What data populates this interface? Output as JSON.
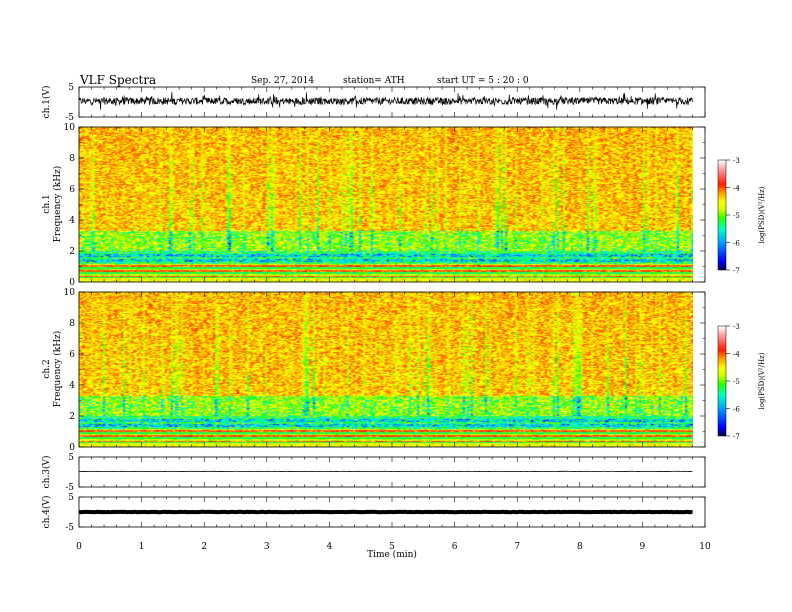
{
  "header": {
    "title": "VLF  Spectra",
    "date": "Sep. 27, 2014",
    "station": "station= ATH",
    "start": "start  UT =   5  : 20 : 0"
  },
  "colors": {
    "spectrum": [
      "#00007a",
      "#0000ff",
      "#0080ff",
      "#00e0ff",
      "#00ff90",
      "#40ff00",
      "#c0ff00",
      "#ffff00",
      "#ffc000",
      "#ff6000",
      "#ff2000",
      "#ff9090",
      "#ffffff"
    ]
  },
  "chart_data": [
    {
      "type": "line",
      "ylabel": "ch.1(V)",
      "xlim": [
        0,
        10
      ],
      "ylim": [
        -5,
        5
      ],
      "yticks": [
        -5,
        5
      ],
      "signal": {
        "baseline": 0.3,
        "amplitude": 1.5,
        "end": 9.8
      }
    },
    {
      "type": "heatmap",
      "ylabel_channel": "ch.1",
      "ylabel": "Frequency  (kHz)",
      "xlim": [
        0,
        10
      ],
      "ylim": [
        0,
        10
      ],
      "yticks": [
        "0",
        "2",
        "4",
        "6",
        "8",
        "10"
      ],
      "colorbar": {
        "label": "log(PSD)(V²/Hz)",
        "ticks": [
          "-3",
          "-4",
          "-5",
          "-6",
          "-7"
        ],
        "range": [
          -7,
          -3
        ]
      }
    },
    {
      "type": "heatmap",
      "ylabel_channel": "ch.2",
      "ylabel": "Frequency  (kHz)",
      "xlim": [
        0,
        10
      ],
      "ylim": [
        0,
        10
      ],
      "yticks": [
        "0",
        "2",
        "4",
        "6",
        "8",
        "10"
      ],
      "colorbar": {
        "label": "log(PSD)(V²/Hz)",
        "ticks": [
          "-3",
          "-4",
          "-5",
          "-6",
          "-7"
        ],
        "range": [
          -7,
          -3
        ]
      }
    },
    {
      "type": "line",
      "ylabel": "ch.3(V)",
      "xlim": [
        0,
        10
      ],
      "ylim": [
        -5,
        5
      ],
      "yticks": [
        -5,
        5
      ],
      "signal": {
        "baseline": 0.2,
        "amplitude": 0.1,
        "end": 9.8
      }
    },
    {
      "type": "line",
      "ylabel": "ch.4(V)",
      "xlim": [
        0,
        10
      ],
      "ylim": [
        -5,
        5
      ],
      "yticks": [
        -5,
        5
      ],
      "signal": {
        "baseline": 0.0,
        "amplitude": 0.15,
        "end": 9.8
      },
      "xlabel": "Time  (min)",
      "xticks": [
        "0",
        "1",
        "2",
        "3",
        "4",
        "5",
        "6",
        "7",
        "8",
        "9",
        "10"
      ]
    }
  ]
}
